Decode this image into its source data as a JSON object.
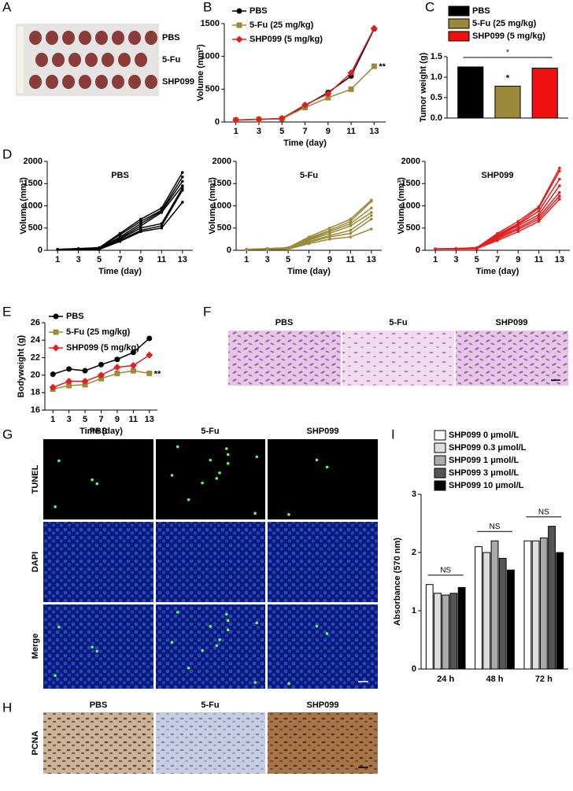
{
  "figure": {
    "panel_letters": [
      "A",
      "B",
      "C",
      "D",
      "E",
      "F",
      "G",
      "H",
      "I"
    ],
    "panel_a": {
      "row_labels": [
        "PBS",
        "5-Fu",
        "SHP099"
      ]
    },
    "panel_f": {
      "column_labels": [
        "PBS",
        "5-Fu",
        "SHP099"
      ]
    },
    "panel_g": {
      "column_labels": [
        "PBS",
        "5-Fu",
        "SHP099"
      ],
      "row_labels": [
        "TUNEL",
        "DAPI",
        "Merge"
      ]
    },
    "panel_h": {
      "column_labels": [
        "PBS",
        "5-Fu",
        "SHP099"
      ],
      "row_labels": [
        "PCNA"
      ]
    }
  },
  "chart_data": [
    {
      "type": "line",
      "xlabel": "Time (day)",
      "ylabel": "Volume (mm³)",
      "x": [
        1,
        3,
        5,
        7,
        9,
        11,
        13
      ],
      "xlim": [
        0,
        14
      ],
      "xticks": [
        1,
        3,
        5,
        7,
        9,
        11,
        13
      ],
      "ylim": [
        0,
        1500
      ],
      "yticks": [
        0,
        500,
        1000,
        1500
      ],
      "series": [
        {
          "name": "PBS",
          "color": "#000000",
          "marker": "circle",
          "values": [
            30,
            40,
            50,
            250,
            450,
            700,
            1420
          ]
        },
        {
          "name": "5-Fu (25 mg/kg)",
          "color": "#9a8a3a",
          "marker": "square",
          "values": [
            30,
            40,
            50,
            220,
            370,
            500,
            850
          ]
        },
        {
          "name": "SHP099 (5 mg/kg)",
          "color": "#e02020",
          "marker": "diamond",
          "values": [
            30,
            40,
            55,
            260,
            430,
            750,
            1430
          ]
        }
      ],
      "annotations": [
        "**"
      ]
    },
    {
      "type": "bar",
      "ylabel": "Tumor weight (g)",
      "categories": [
        null
      ],
      "ylim": [
        0,
        1.5
      ],
      "yticks": [
        {
          "value": 0,
          "label": "0.0"
        },
        {
          "value": 0.5,
          "label": "0.5"
        },
        {
          "value": 1,
          "label": "1.0"
        },
        {
          "value": 1.5,
          "label": "1.5"
        }
      ],
      "series": [
        {
          "name": "PBS",
          "color": "#000000",
          "values": [
            1.25
          ]
        },
        {
          "name": "5-Fu (25 mg/kg)",
          "color": "#9a8a3a",
          "values": [
            0.78
          ]
        },
        {
          "name": "SHP099 (5 mg/kg)",
          "color": "#ee1111",
          "values": [
            1.22
          ]
        }
      ],
      "annotations": [
        "*"
      ]
    },
    {
      "type": "line",
      "title": "PBS",
      "xlabel": "Time (day)",
      "ylabel": "Volume (mm³)",
      "x": [
        1,
        3,
        5,
        7,
        9,
        11,
        13
      ],
      "xlim": [
        0,
        14
      ],
      "xticks": [
        1,
        3,
        5,
        7,
        9,
        11,
        13
      ],
      "ylim": [
        0,
        2000
      ],
      "yticks": [
        0,
        500,
        1000,
        1500,
        2000
      ],
      "series": [
        {
          "color": "#000000",
          "marker": "dot",
          "values": [
            20,
            40,
            60,
            380,
            700,
            950,
            1750
          ]
        },
        {
          "color": "#000000",
          "marker": "dot",
          "values": [
            20,
            35,
            50,
            350,
            650,
            900,
            1650
          ]
        },
        {
          "color": "#000000",
          "marker": "dot",
          "values": [
            20,
            30,
            40,
            300,
            600,
            880,
            1550
          ]
        },
        {
          "color": "#000000",
          "marker": "dot",
          "values": [
            20,
            30,
            40,
            270,
            550,
            850,
            1450
          ]
        },
        {
          "color": "#000000",
          "marker": "dot",
          "values": [
            20,
            25,
            30,
            250,
            500,
            600,
            1400
          ]
        },
        {
          "color": "#000000",
          "marker": "dot",
          "values": [
            20,
            25,
            30,
            220,
            450,
            550,
            1350
          ]
        },
        {
          "color": "#000000",
          "marker": "dot",
          "values": [
            20,
            20,
            20,
            200,
            420,
            500,
            1080
          ]
        }
      ]
    },
    {
      "type": "line",
      "title": "5-Fu",
      "xlabel": "Time (day)",
      "ylabel": "Volume (mm³)",
      "x": [
        1,
        3,
        5,
        7,
        9,
        11,
        13
      ],
      "xlim": [
        0,
        14
      ],
      "xticks": [
        1,
        3,
        5,
        7,
        9,
        11,
        13
      ],
      "ylim": [
        0,
        2000
      ],
      "yticks": [
        0,
        500,
        1000,
        1500,
        2000
      ],
      "series": [
        {
          "color": "#9a8a3a",
          "marker": "dot",
          "values": [
            20,
            40,
            60,
            300,
            500,
            700,
            1130
          ]
        },
        {
          "color": "#9a8a3a",
          "marker": "dot",
          "values": [
            20,
            35,
            50,
            270,
            450,
            650,
            1100
          ]
        },
        {
          "color": "#9a8a3a",
          "marker": "dot",
          "values": [
            20,
            30,
            45,
            250,
            420,
            600,
            950
          ]
        },
        {
          "color": "#9a8a3a",
          "marker": "dot",
          "values": [
            20,
            30,
            40,
            230,
            380,
            550,
            850
          ]
        },
        {
          "color": "#9a8a3a",
          "marker": "dot",
          "values": [
            20,
            25,
            35,
            200,
            330,
            450,
            780
          ]
        },
        {
          "color": "#9a8a3a",
          "marker": "dot",
          "values": [
            20,
            25,
            30,
            180,
            300,
            380,
            700
          ]
        },
        {
          "color": "#9a8a3a",
          "marker": "dot",
          "values": [
            20,
            20,
            25,
            150,
            250,
            300,
            480
          ]
        }
      ]
    },
    {
      "type": "line",
      "title": "SHP099",
      "xlabel": "Time (day)",
      "ylabel": "Volume (mm³)",
      "x": [
        1,
        3,
        5,
        7,
        9,
        11,
        13
      ],
      "xlim": [
        0,
        14
      ],
      "xticks": [
        1,
        3,
        5,
        7,
        9,
        11,
        13
      ],
      "ylim": [
        0,
        2000
      ],
      "yticks": [
        0,
        500,
        1000,
        1500,
        2000
      ],
      "series": [
        {
          "color": "#e02020",
          "marker": "dot",
          "values": [
            30,
            40,
            60,
            380,
            650,
            980,
            1850
          ]
        },
        {
          "color": "#e02020",
          "marker": "dot",
          "values": [
            30,
            40,
            55,
            350,
            600,
            950,
            1780
          ]
        },
        {
          "color": "#e02020",
          "marker": "dot",
          "values": [
            30,
            35,
            50,
            320,
            580,
            880,
            1600
          ]
        },
        {
          "color": "#e02020",
          "marker": "dot",
          "values": [
            30,
            35,
            45,
            300,
            550,
            800,
            1450
          ]
        },
        {
          "color": "#e02020",
          "marker": "dot",
          "values": [
            30,
            30,
            40,
            280,
            500,
            750,
            1300
          ]
        },
        {
          "color": "#e02020",
          "marker": "dot",
          "values": [
            30,
            30,
            40,
            250,
            470,
            700,
            1220
          ]
        },
        {
          "color": "#e02020",
          "marker": "dot",
          "values": [
            30,
            30,
            35,
            220,
            420,
            650,
            1150
          ]
        }
      ]
    },
    {
      "type": "line",
      "xlabel": "Time (day)",
      "ylabel": "Bodyweight (g)",
      "x": [
        1,
        3,
        5,
        7,
        9,
        11,
        13
      ],
      "xlim": [
        0,
        14
      ],
      "xticks": [
        1,
        3,
        5,
        7,
        9,
        11,
        13
      ],
      "ylim": [
        16,
        26
      ],
      "yticks": [
        16,
        18,
        20,
        22,
        24,
        26
      ],
      "series": [
        {
          "name": "PBS",
          "color": "#000000",
          "marker": "circle",
          "values": [
            20.1,
            20.7,
            20.5,
            21.2,
            21.8,
            22.6,
            24.2
          ]
        },
        {
          "name": "5-Fu (25 mg/kg)",
          "color": "#9a8a3a",
          "marker": "square",
          "values": [
            18.4,
            18.8,
            18.9,
            19.6,
            20.2,
            20.5,
            20.2
          ]
        },
        {
          "name": "SHP099 (5 mg/kg)",
          "color": "#e02020",
          "marker": "diamond",
          "values": [
            18.6,
            19.3,
            19.3,
            20.0,
            20.9,
            21.1,
            22.3
          ]
        }
      ],
      "annotations": [
        "**"
      ]
    },
    {
      "type": "bar",
      "ylabel": "Absorbance (570 nm)",
      "categories": [
        "24 h",
        "48 h",
        "72 h"
      ],
      "ylim": [
        0,
        3
      ],
      "yticks": [
        0,
        1,
        2,
        3
      ],
      "series": [
        {
          "name": "SHP099   0 μmol/L",
          "color": "#ffffff",
          "values": [
            1.45,
            2.1,
            2.2
          ]
        },
        {
          "name": "SHP099 0.3 μmol/L",
          "color": "#dddddd",
          "values": [
            1.3,
            2.0,
            2.2
          ]
        },
        {
          "name": "SHP099   1 μmol/L",
          "color": "#aaaaaa",
          "values": [
            1.27,
            2.2,
            2.25
          ]
        },
        {
          "name": "SHP099   3 μmol/L",
          "color": "#555555",
          "values": [
            1.3,
            1.9,
            2.45
          ]
        },
        {
          "name": "SHP099  10 μmol/L",
          "color": "#000000",
          "values": [
            1.4,
            1.7,
            2.0
          ]
        }
      ],
      "annotations": [
        "NS",
        "NS",
        "NS"
      ]
    }
  ]
}
